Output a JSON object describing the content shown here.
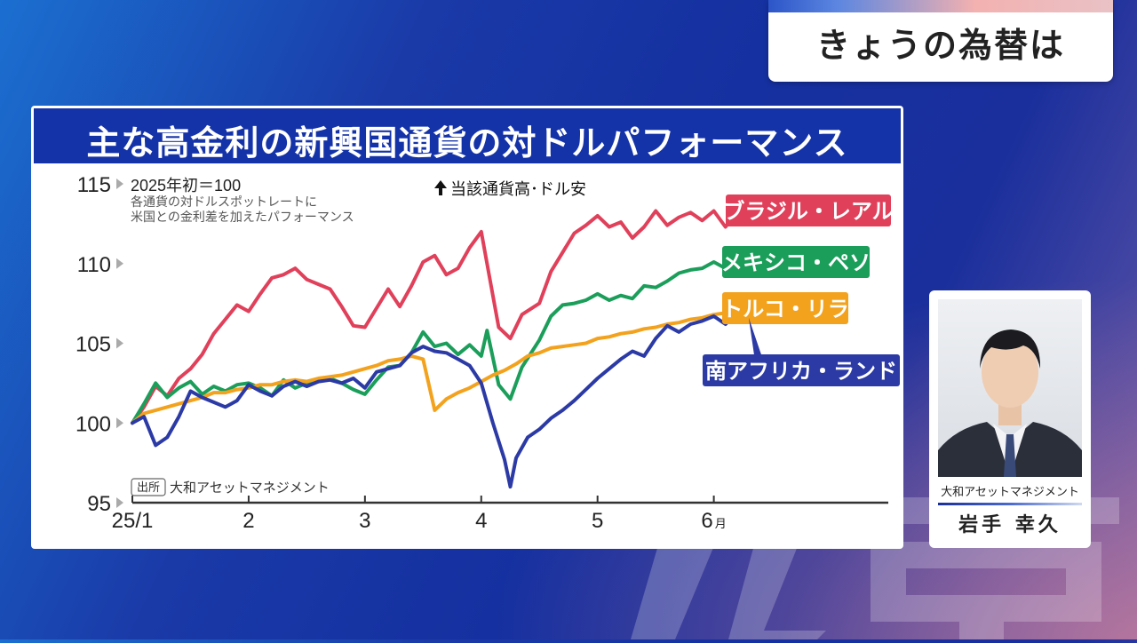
{
  "header": {
    "title": "きょうの為替は"
  },
  "chart": {
    "title": "主な高金利の新興国通貨の対ドルパフォーマンス",
    "baseline_note": "2025年初＝100",
    "note_lines": [
      "各通貨の対ドルスポットレートに",
      "米国との金利差を加えたパフォーマンス"
    ],
    "direction_note": "当該通貨高･ドル安",
    "source_tag": "出所",
    "source": "大和アセットマネジメント",
    "month_suffix": "月"
  },
  "chart_data": {
    "type": "line",
    "ylim": [
      95,
      115
    ],
    "yticks": [
      95,
      100,
      105,
      110,
      115
    ],
    "x_tick_labels": [
      "25/1",
      "2",
      "3",
      "4",
      "5",
      "6"
    ],
    "x_tick_months": [
      1,
      2,
      3,
      4,
      5,
      6
    ],
    "xlim": [
      1,
      7.5
    ],
    "series": [
      {
        "name": "ブラジル・レアル",
        "color": "#e0405a",
        "points": [
          [
            1.0,
            100.0
          ],
          [
            1.1,
            101.0
          ],
          [
            1.2,
            102.3
          ],
          [
            1.3,
            101.7
          ],
          [
            1.4,
            102.8
          ],
          [
            1.5,
            103.4
          ],
          [
            1.6,
            104.3
          ],
          [
            1.7,
            105.6
          ],
          [
            1.8,
            106.5
          ],
          [
            1.9,
            107.4
          ],
          [
            2.0,
            107.0
          ],
          [
            2.1,
            108.1
          ],
          [
            2.2,
            109.1
          ],
          [
            2.3,
            109.3
          ],
          [
            2.4,
            109.7
          ],
          [
            2.5,
            109.0
          ],
          [
            2.6,
            108.7
          ],
          [
            2.7,
            108.4
          ],
          [
            2.8,
            107.3
          ],
          [
            2.9,
            106.1
          ],
          [
            3.0,
            106.0
          ],
          [
            3.1,
            107.2
          ],
          [
            3.2,
            108.4
          ],
          [
            3.3,
            107.3
          ],
          [
            3.4,
            108.6
          ],
          [
            3.5,
            110.1
          ],
          [
            3.6,
            110.5
          ],
          [
            3.7,
            109.3
          ],
          [
            3.8,
            109.7
          ],
          [
            3.9,
            111.0
          ],
          [
            4.0,
            112.0
          ],
          [
            4.05,
            110.0
          ],
          [
            4.15,
            106.0
          ],
          [
            4.25,
            105.3
          ],
          [
            4.35,
            106.8
          ],
          [
            4.5,
            107.5
          ],
          [
            4.6,
            109.5
          ],
          [
            4.7,
            110.7
          ],
          [
            4.8,
            111.9
          ],
          [
            4.9,
            112.4
          ],
          [
            5.0,
            113.0
          ],
          [
            5.1,
            112.3
          ],
          [
            5.2,
            112.6
          ],
          [
            5.3,
            111.6
          ],
          [
            5.4,
            112.3
          ],
          [
            5.5,
            113.3
          ],
          [
            5.6,
            112.4
          ],
          [
            5.7,
            112.9
          ],
          [
            5.8,
            113.2
          ],
          [
            5.9,
            112.7
          ],
          [
            6.0,
            113.3
          ],
          [
            6.1,
            112.3
          ],
          [
            6.2,
            113.2
          ],
          [
            6.3,
            113.9
          ]
        ]
      },
      {
        "name": "メキシコ・ペソ",
        "color": "#1b9e5a",
        "points": [
          [
            1.0,
            100.0
          ],
          [
            1.1,
            101.2
          ],
          [
            1.2,
            102.5
          ],
          [
            1.3,
            101.6
          ],
          [
            1.4,
            102.2
          ],
          [
            1.5,
            102.6
          ],
          [
            1.6,
            101.8
          ],
          [
            1.7,
            102.3
          ],
          [
            1.8,
            102.0
          ],
          [
            1.9,
            102.4
          ],
          [
            2.0,
            102.5
          ],
          [
            2.1,
            102.2
          ],
          [
            2.2,
            101.7
          ],
          [
            2.3,
            102.7
          ],
          [
            2.4,
            102.2
          ],
          [
            2.5,
            102.5
          ],
          [
            2.6,
            102.6
          ],
          [
            2.7,
            102.8
          ],
          [
            2.8,
            102.5
          ],
          [
            2.9,
            102.1
          ],
          [
            3.0,
            101.8
          ],
          [
            3.1,
            102.7
          ],
          [
            3.2,
            103.5
          ],
          [
            3.3,
            103.6
          ],
          [
            3.4,
            104.4
          ],
          [
            3.5,
            105.7
          ],
          [
            3.6,
            104.8
          ],
          [
            3.7,
            105.0
          ],
          [
            3.8,
            104.3
          ],
          [
            3.9,
            104.9
          ],
          [
            4.0,
            104.2
          ],
          [
            4.05,
            105.8
          ],
          [
            4.15,
            102.4
          ],
          [
            4.25,
            101.5
          ],
          [
            4.35,
            103.5
          ],
          [
            4.5,
            105.2
          ],
          [
            4.6,
            106.7
          ],
          [
            4.7,
            107.4
          ],
          [
            4.8,
            107.5
          ],
          [
            4.9,
            107.7
          ],
          [
            5.0,
            108.1
          ],
          [
            5.1,
            107.7
          ],
          [
            5.2,
            108.0
          ],
          [
            5.3,
            107.8
          ],
          [
            5.4,
            108.6
          ],
          [
            5.5,
            108.5
          ],
          [
            5.6,
            108.9
          ],
          [
            5.7,
            109.4
          ],
          [
            5.8,
            109.6
          ],
          [
            5.9,
            109.7
          ],
          [
            6.0,
            110.1
          ],
          [
            6.1,
            109.7
          ],
          [
            6.2,
            110.5
          ],
          [
            6.3,
            110.7
          ]
        ]
      },
      {
        "name": "トルコ・リラ",
        "color": "#f3a21d",
        "points": [
          [
            1.0,
            100.0
          ],
          [
            1.1,
            100.6
          ],
          [
            1.2,
            100.8
          ],
          [
            1.3,
            101.0
          ],
          [
            1.4,
            101.2
          ],
          [
            1.5,
            101.4
          ],
          [
            1.6,
            101.6
          ],
          [
            1.7,
            101.9
          ],
          [
            1.8,
            101.9
          ],
          [
            1.9,
            102.1
          ],
          [
            2.0,
            102.2
          ],
          [
            2.1,
            102.4
          ],
          [
            2.2,
            102.4
          ],
          [
            2.3,
            102.6
          ],
          [
            2.4,
            102.7
          ],
          [
            2.5,
            102.6
          ],
          [
            2.6,
            102.8
          ],
          [
            2.7,
            102.9
          ],
          [
            2.8,
            103.0
          ],
          [
            2.9,
            103.2
          ],
          [
            3.0,
            103.4
          ],
          [
            3.1,
            103.6
          ],
          [
            3.2,
            103.9
          ],
          [
            3.3,
            104.0
          ],
          [
            3.4,
            104.2
          ],
          [
            3.5,
            104.0
          ],
          [
            3.6,
            100.8
          ],
          [
            3.7,
            101.5
          ],
          [
            3.8,
            101.9
          ],
          [
            3.9,
            102.2
          ],
          [
            4.0,
            102.6
          ],
          [
            4.1,
            103.0
          ],
          [
            4.2,
            103.3
          ],
          [
            4.3,
            103.7
          ],
          [
            4.4,
            104.2
          ],
          [
            4.5,
            104.4
          ],
          [
            4.6,
            104.7
          ],
          [
            4.7,
            104.8
          ],
          [
            4.8,
            104.9
          ],
          [
            4.9,
            105.0
          ],
          [
            5.0,
            105.3
          ],
          [
            5.1,
            105.4
          ],
          [
            5.2,
            105.6
          ],
          [
            5.3,
            105.7
          ],
          [
            5.4,
            105.9
          ],
          [
            5.5,
            106.0
          ],
          [
            5.6,
            106.2
          ],
          [
            5.7,
            106.3
          ],
          [
            5.8,
            106.5
          ],
          [
            5.9,
            106.6
          ],
          [
            6.0,
            106.8
          ],
          [
            6.1,
            106.9
          ],
          [
            6.2,
            107.0
          ],
          [
            6.3,
            107.2
          ]
        ]
      },
      {
        "name": "南アフリカ・ランド",
        "color": "#2b3aa5",
        "points": [
          [
            1.0,
            100.0
          ],
          [
            1.1,
            100.4
          ],
          [
            1.2,
            98.6
          ],
          [
            1.3,
            99.1
          ],
          [
            1.4,
            100.4
          ],
          [
            1.5,
            102.0
          ],
          [
            1.6,
            101.6
          ],
          [
            1.7,
            101.3
          ],
          [
            1.8,
            101.0
          ],
          [
            1.9,
            101.4
          ],
          [
            2.0,
            102.4
          ],
          [
            2.1,
            102.0
          ],
          [
            2.2,
            101.7
          ],
          [
            2.3,
            102.3
          ],
          [
            2.4,
            102.6
          ],
          [
            2.5,
            102.3
          ],
          [
            2.6,
            102.6
          ],
          [
            2.7,
            102.7
          ],
          [
            2.8,
            102.5
          ],
          [
            2.9,
            102.8
          ],
          [
            3.0,
            102.2
          ],
          [
            3.1,
            103.2
          ],
          [
            3.2,
            103.4
          ],
          [
            3.3,
            103.6
          ],
          [
            3.4,
            104.4
          ],
          [
            3.5,
            104.8
          ],
          [
            3.6,
            104.5
          ],
          [
            3.7,
            104.4
          ],
          [
            3.8,
            104.0
          ],
          [
            3.9,
            103.6
          ],
          [
            4.0,
            102.5
          ],
          [
            4.1,
            100.0
          ],
          [
            4.2,
            97.7
          ],
          [
            4.25,
            96.0
          ],
          [
            4.3,
            97.8
          ],
          [
            4.4,
            99.1
          ],
          [
            4.5,
            99.6
          ],
          [
            4.6,
            100.3
          ],
          [
            4.7,
            100.8
          ],
          [
            4.8,
            101.4
          ],
          [
            4.9,
            102.1
          ],
          [
            5.0,
            102.8
          ],
          [
            5.1,
            103.4
          ],
          [
            5.2,
            104.0
          ],
          [
            5.3,
            104.5
          ],
          [
            5.4,
            104.2
          ],
          [
            5.5,
            105.3
          ],
          [
            5.6,
            106.1
          ],
          [
            5.7,
            105.7
          ],
          [
            5.8,
            106.2
          ],
          [
            5.9,
            106.4
          ],
          [
            6.0,
            106.7
          ],
          [
            6.1,
            106.2
          ],
          [
            6.2,
            106.9
          ],
          [
            6.3,
            106.6
          ]
        ]
      }
    ]
  },
  "presenter": {
    "company": "大和アセットマネジメント",
    "name": "岩手 幸久"
  }
}
